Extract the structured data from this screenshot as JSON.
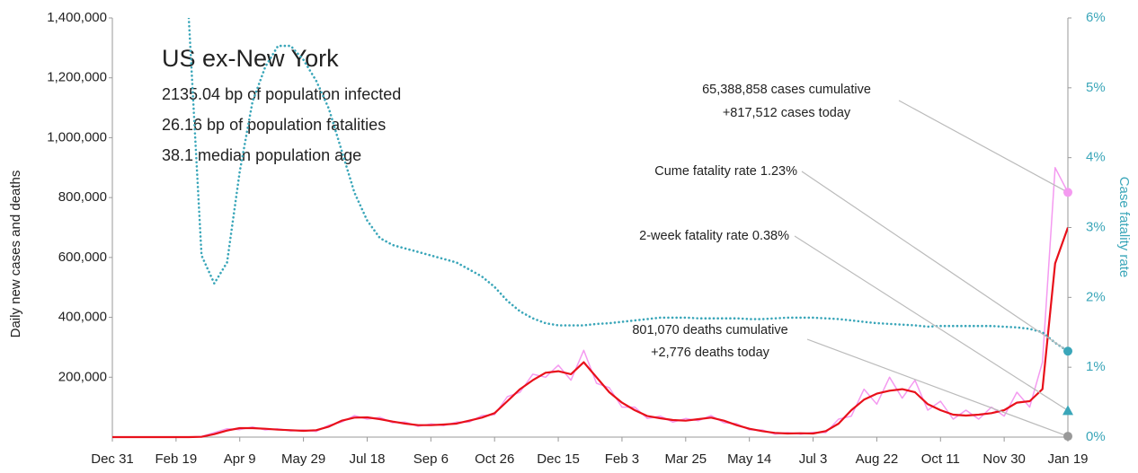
{
  "chart_data": {
    "type": "line",
    "info": {
      "title": "US ex-New York",
      "lines": [
        "2135.04 bp of population infected",
        "26.16 bp of population fatalities",
        "38.1 median population age"
      ]
    },
    "y_label": "Daily new cases and deaths",
    "y2_label": "Case fatality rate",
    "categories": [
      "Dec 31",
      null,
      null,
      null,
      null,
      "Feb 19",
      null,
      null,
      null,
      null,
      "Apr 9",
      null,
      null,
      null,
      null,
      "May 29",
      null,
      null,
      null,
      null,
      "Jul 18",
      null,
      null,
      null,
      null,
      "Sep 6",
      null,
      null,
      null,
      null,
      "Oct 26",
      null,
      null,
      null,
      null,
      "Dec 15",
      null,
      null,
      null,
      null,
      "Feb 3",
      null,
      null,
      null,
      null,
      "Mar 25",
      null,
      null,
      null,
      null,
      "May 14",
      null,
      null,
      null,
      null,
      "Jul 3",
      null,
      null,
      null,
      null,
      "Aug 22",
      null,
      null,
      null,
      null,
      "Oct 11",
      null,
      null,
      null,
      null,
      "Nov 30",
      null,
      null,
      null,
      null,
      "Jan 19"
    ],
    "ylim": [
      0,
      1400000
    ],
    "yticks": [
      {
        "value": 200000,
        "label": "200,000"
      },
      {
        "value": 400000,
        "label": "400,000"
      },
      {
        "value": 600000,
        "label": "600,000"
      },
      {
        "value": 800000,
        "label": "800,000"
      },
      {
        "value": 1000000,
        "label": "1,000,000"
      },
      {
        "value": 1200000,
        "label": "1,200,000"
      },
      {
        "value": 1400000,
        "label": "1,400,000"
      }
    ],
    "y2lim": [
      0,
      6
    ],
    "y2ticks": [
      {
        "value": 0,
        "label": "0%"
      },
      {
        "value": 1,
        "label": "1%"
      },
      {
        "value": 2,
        "label": "2%"
      },
      {
        "value": 3,
        "label": "3%"
      },
      {
        "value": 4,
        "label": "4%"
      },
      {
        "value": 5,
        "label": "5%"
      },
      {
        "value": 6,
        "label": "6%"
      }
    ],
    "grid": false,
    "series": [
      {
        "color": "#f49af0",
        "width": 1.5,
        "dash": false,
        "values": [
          0,
          0,
          0,
          0,
          0,
          0,
          0,
          2000,
          15000,
          28000,
          25000,
          34000,
          24000,
          28000,
          20000,
          24000,
          19000,
          40000,
          50000,
          72000,
          60000,
          66000,
          48000,
          50000,
          36000,
          44000,
          38000,
          50000,
          50000,
          72000,
          75000,
          135000,
          150000,
          210000,
          200000,
          240000,
          190000,
          290000,
          180000,
          165000,
          100000,
          100000,
          62000,
          70000,
          50000,
          62000,
          55000,
          72000,
          48000,
          45000,
          24000,
          24000,
          10000,
          15000,
          10000,
          16000,
          15000,
          60000,
          70000,
          160000,
          110000,
          200000,
          130000,
          190000,
          90000,
          120000,
          60000,
          90000,
          60000,
          100000,
          70000,
          150000,
          100000,
          250000,
          900000,
          817512
        ]
      },
      {
        "color": "#e8101a",
        "width": 2.2,
        "dash": false,
        "values": [
          0,
          0,
          0,
          0,
          0,
          0,
          0,
          1000,
          10000,
          22000,
          30000,
          30000,
          28000,
          25000,
          23000,
          21000,
          23000,
          35000,
          55000,
          65000,
          66000,
          60000,
          52000,
          45000,
          40000,
          40000,
          42000,
          45000,
          55000,
          65000,
          80000,
          120000,
          160000,
          190000,
          215000,
          220000,
          210000,
          250000,
          200000,
          150000,
          115000,
          90000,
          70000,
          63000,
          57000,
          55000,
          60000,
          65000,
          55000,
          40000,
          28000,
          20000,
          14000,
          12000,
          13000,
          12000,
          20000,
          45000,
          90000,
          125000,
          145000,
          155000,
          160000,
          150000,
          110000,
          90000,
          75000,
          72000,
          75000,
          80000,
          90000,
          115000,
          120000,
          160000,
          580000,
          700000
        ]
      },
      {
        "color": "#3aa6b9",
        "width": 2.6,
        "dash": true,
        "axis": "y2",
        "values": [
          null,
          null,
          null,
          null,
          null,
          null,
          6,
          2.6,
          2.2,
          2.5,
          3.8,
          4.8,
          5.3,
          5.6,
          5.6,
          5.4,
          5.1,
          4.7,
          4.1,
          3.5,
          3.1,
          2.85,
          2.75,
          2.7,
          2.65,
          2.6,
          2.55,
          2.5,
          2.4,
          2.3,
          2.15,
          1.95,
          1.8,
          1.7,
          1.63,
          1.6,
          1.6,
          1.6,
          1.62,
          1.63,
          1.65,
          1.67,
          1.69,
          1.71,
          1.71,
          1.71,
          1.7,
          1.7,
          1.7,
          1.7,
          1.69,
          1.69,
          1.7,
          1.71,
          1.71,
          1.71,
          1.7,
          1.69,
          1.67,
          1.65,
          1.63,
          1.62,
          1.61,
          1.6,
          1.58,
          1.59,
          1.59,
          1.59,
          1.59,
          1.59,
          1.58,
          1.57,
          1.55,
          1.5,
          1.35,
          1.23
        ]
      }
    ],
    "annotations": [
      {
        "lines": [
          "65,388,858 cases cumulative",
          "+817,512 cases today"
        ],
        "value": 817512,
        "axis": "y",
        "shape": "circle",
        "color": "#f49af0"
      },
      {
        "lines": [
          "Cume fatality rate 1.23%"
        ],
        "value": 1.23,
        "axis": "y2",
        "shape": "circle",
        "color": "#3aa6b9"
      },
      {
        "lines": [
          "2-week fatality rate 0.38%"
        ],
        "value": 0.38,
        "axis": "y2",
        "shape": "triangle",
        "color": "#3aa6b9"
      },
      {
        "lines": [
          "801,070 deaths cumulative",
          "+2,776 deaths today"
        ],
        "value": 2776,
        "axis": "y",
        "shape": "circle",
        "color": "#999999"
      }
    ]
  }
}
